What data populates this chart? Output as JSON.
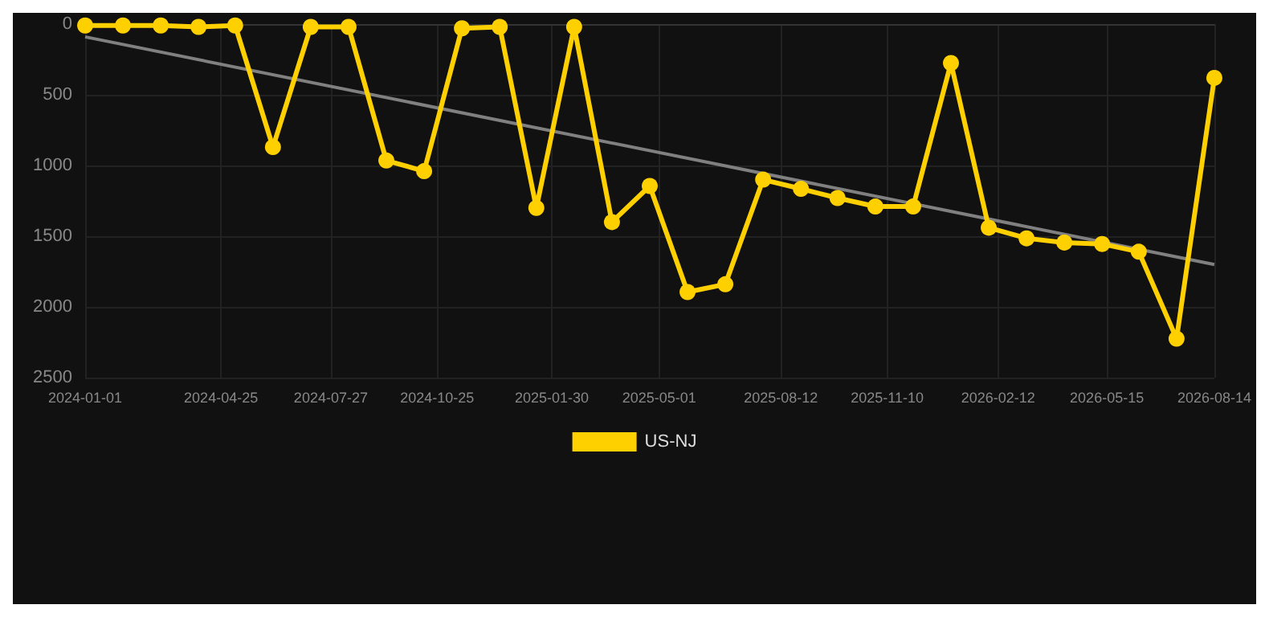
{
  "chart_data": {
    "type": "line",
    "ylim": [
      2500,
      0
    ],
    "yticks": [
      0,
      500,
      1000,
      1500,
      2000,
      2500
    ],
    "xlim": [
      "2024-01-01",
      "2026-08-14"
    ],
    "xticks": [
      "2024-01-01",
      "2024-04-25",
      "2024-07-27",
      "2024-10-25",
      "2025-01-30",
      "2025-05-01",
      "2025-08-12",
      "2025-11-10",
      "2026-02-12",
      "2026-05-15",
      "2026-08-14"
    ],
    "grid": true,
    "legend": "bottom",
    "marker": "circle",
    "line_style": "solid",
    "x": [
      "2024-01-01",
      "2024-02-02",
      "2024-03-05",
      "2024-04-06",
      "2024-05-07",
      "2024-06-08",
      "2024-07-10",
      "2024-08-11",
      "2024-09-12",
      "2024-10-14",
      "2024-11-15",
      "2024-12-17",
      "2025-01-17",
      "2025-02-18",
      "2025-03-22",
      "2025-04-23",
      "2025-05-25",
      "2025-06-26",
      "2025-07-28",
      "2025-08-29",
      "2025-09-29",
      "2025-10-31",
      "2025-12-02",
      "2026-01-03",
      "2026-02-04",
      "2026-03-08",
      "2026-04-09",
      "2026-05-11",
      "2026-06-11",
      "2026-07-13",
      "2026-08-14"
    ],
    "series": [
      {
        "name": "US-NJ",
        "color": "#ffd000",
        "values": [
          10,
          10,
          10,
          20,
          10,
          870,
          20,
          20,
          965,
          1040,
          30,
          20,
          1300,
          20,
          1400,
          1145,
          1895,
          1840,
          1100,
          1165,
          1230,
          1290,
          1290,
          275,
          1440,
          1515,
          1545,
          1555,
          1610,
          2225,
          380
        ]
      },
      {
        "type": "line",
        "color": "#808080",
        "marker": "none",
        "x": [
          "2024-01-01",
          "2026-08-14"
        ],
        "values": [
          90,
          1700
        ]
      }
    ]
  }
}
